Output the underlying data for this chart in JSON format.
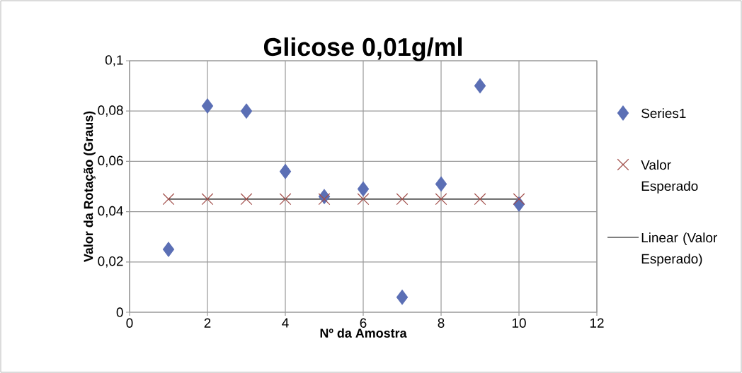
{
  "chart_data": {
    "type": "scatter",
    "title": "Glicose 0,01g/ml",
    "xlabel": "Nº da Amostra",
    "ylabel": "Valor da Rotação (Graus)",
    "x": [
      1,
      2,
      3,
      4,
      5,
      6,
      7,
      8,
      9,
      10
    ],
    "series": [
      {
        "name": "Series1",
        "color": "#5b6fb5",
        "marker": "diamond",
        "values": [
          0.025,
          0.082,
          0.08,
          0.056,
          0.046,
          0.049,
          0.006,
          0.051,
          0.09,
          0.043
        ]
      },
      {
        "name": "Valor Esperado",
        "color": "#a04c48",
        "marker": "cross",
        "values": [
          0.045,
          0.045,
          0.045,
          0.045,
          0.045,
          0.045,
          0.045,
          0.045,
          0.045,
          0.045
        ]
      },
      {
        "name": "Linear (Valor Esperado)",
        "type": "line",
        "color": "#000000",
        "x": [
          1,
          10
        ],
        "values": [
          0.045,
          0.045
        ]
      }
    ],
    "xlim": [
      0,
      12
    ],
    "xticks": [
      0,
      2,
      4,
      6,
      8,
      10,
      12
    ],
    "ylim": [
      0,
      0.1
    ],
    "yticks": [
      {
        "value": 0,
        "label": "0"
      },
      {
        "value": 0.02,
        "label": "0,02"
      },
      {
        "value": 0.04,
        "label": "0,04"
      },
      {
        "value": 0.06,
        "label": "0,06"
      },
      {
        "value": 0.08,
        "label": "0,08"
      },
      {
        "value": 0.1,
        "label": "0,1"
      }
    ],
    "grid": true,
    "legend": "right"
  }
}
